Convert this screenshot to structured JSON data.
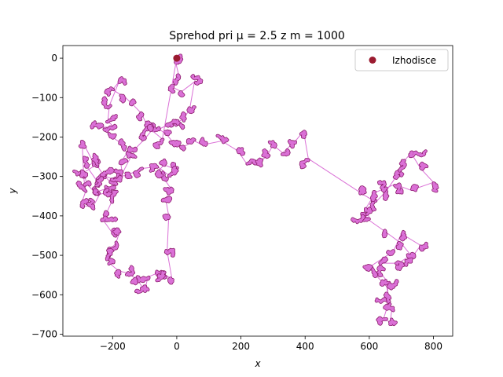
{
  "chart_data": {
    "type": "line",
    "title": "Sprehod pri μ = 2.5 z m = 1000",
    "xlabel": "x",
    "ylabel": "y",
    "xlim": [
      -355,
      860
    ],
    "ylim": [
      -705,
      32
    ],
    "xticks": [
      -200,
      0,
      200,
      400,
      600,
      800
    ],
    "xtick_labels": [
      "−200",
      "0",
      "200",
      "400",
      "600",
      "800"
    ],
    "yticks": [
      0,
      -100,
      -200,
      -300,
      -400,
      -500,
      -600,
      -700
    ],
    "ytick_labels": [
      "0",
      "−100",
      "−200",
      "−300",
      "−400",
      "−500",
      "−600",
      "−700"
    ],
    "grid": false,
    "legend": {
      "placement": "top-right",
      "entries": [
        "Izhodisce"
      ]
    },
    "colors": {
      "path": "#da70d6",
      "path_edge": "#8b1a6b",
      "origin": "#9b1b30"
    },
    "origin": {
      "label": "Izhodisce",
      "x": 0,
      "y": 0
    },
    "walk_jump_points": [
      [
        0,
        0
      ],
      [
        -5,
        -5
      ],
      [
        5,
        -40
      ],
      [
        -10,
        -75
      ],
      [
        15,
        -85
      ],
      [
        55,
        -60
      ],
      [
        40,
        -130
      ],
      [
        20,
        -155
      ],
      [
        -5,
        -165
      ],
      [
        -30,
        -170
      ],
      [
        -55,
        -180
      ],
      [
        -30,
        -195
      ],
      [
        -10,
        -215
      ],
      [
        20,
        -225
      ],
      [
        55,
        -210
      ],
      [
        80,
        -220
      ],
      [
        140,
        -210
      ],
      [
        190,
        -235
      ],
      [
        220,
        -270
      ],
      [
        250,
        -265
      ],
      [
        280,
        -250
      ],
      [
        300,
        -220
      ],
      [
        330,
        -240
      ],
      [
        370,
        -210
      ],
      [
        395,
        -185
      ],
      [
        410,
        -255
      ],
      [
        580,
        -345
      ],
      [
        620,
        -365
      ],
      [
        650,
        -340
      ],
      [
        680,
        -305
      ],
      [
        700,
        -270
      ],
      [
        730,
        -240
      ],
      [
        760,
        -280
      ],
      [
        800,
        -315
      ],
      [
        730,
        -335
      ],
      [
        680,
        -320
      ],
      [
        650,
        -330
      ],
      [
        620,
        -340
      ],
      [
        590,
        -380
      ],
      [
        600,
        -405
      ],
      [
        580,
        -400
      ],
      [
        650,
        -440
      ],
      [
        700,
        -470
      ],
      [
        730,
        -500
      ],
      [
        690,
        -520
      ],
      [
        640,
        -520
      ],
      [
        625,
        -535
      ],
      [
        660,
        -570
      ],
      [
        655,
        -610
      ],
      [
        670,
        -640
      ],
      [
        665,
        -670
      ],
      [
        645,
        -660
      ],
      [
        660,
        -620
      ],
      [
        655,
        -580
      ],
      [
        620,
        -550
      ],
      [
        600,
        -530
      ],
      [
        675,
        -490
      ],
      [
        700,
        -445
      ],
      [
        760,
        -475
      ],
      [
        720,
        -520
      ]
    ],
    "walk_left_points": [
      [
        0,
        0
      ],
      [
        -45,
        -205
      ],
      [
        -90,
        -175
      ],
      [
        -110,
        -140
      ],
      [
        -140,
        -115
      ],
      [
        -160,
        -100
      ],
      [
        -200,
        -80
      ],
      [
        -180,
        -60
      ],
      [
        -210,
        -120
      ],
      [
        -215,
        -160
      ],
      [
        -195,
        -175
      ],
      [
        -230,
        -175
      ],
      [
        -210,
        -195
      ],
      [
        -175,
        -215
      ],
      [
        -155,
        -240
      ],
      [
        -175,
        -265
      ],
      [
        -170,
        -290
      ],
      [
        -190,
        -310
      ],
      [
        -220,
        -300
      ],
      [
        -250,
        -310
      ],
      [
        -280,
        -275
      ],
      [
        -260,
        -265
      ],
      [
        -295,
        -210
      ],
      [
        -290,
        -300
      ],
      [
        -285,
        -340
      ],
      [
        -300,
        -375
      ],
      [
        -260,
        -375
      ],
      [
        -240,
        -345
      ],
      [
        -210,
        -340
      ],
      [
        -200,
        -320
      ],
      [
        -230,
        -295
      ],
      [
        -250,
        -270
      ],
      [
        -290,
        -290
      ],
      [
        -280,
        -320
      ],
      [
        -255,
        -340
      ],
      [
        -215,
        -330
      ],
      [
        -190,
        -340
      ],
      [
        -220,
        -395
      ],
      [
        -230,
        -410
      ],
      [
        -195,
        -450
      ],
      [
        -180,
        -445
      ],
      [
        -190,
        -470
      ],
      [
        -215,
        -490
      ],
      [
        -210,
        -520
      ],
      [
        -180,
        -540
      ],
      [
        -150,
        -545
      ],
      [
        -120,
        -565
      ],
      [
        -100,
        -590
      ],
      [
        -90,
        -555
      ],
      [
        -60,
        -545
      ],
      [
        -40,
        -555
      ],
      [
        -45,
        -545
      ],
      [
        -15,
        -560
      ],
      [
        -30,
        -490
      ],
      [
        -25,
        -400
      ],
      [
        -35,
        -355
      ],
      [
        -15,
        -335
      ],
      [
        -40,
        -305
      ],
      [
        -60,
        -290
      ],
      [
        -40,
        -270
      ],
      [
        -10,
        -280
      ],
      [
        -20,
        -300
      ],
      [
        -60,
        -275
      ],
      [
        -110,
        -280
      ],
      [
        -150,
        -295
      ],
      [
        -175,
        -300
      ],
      [
        -130,
        -230
      ],
      [
        -100,
        -205
      ],
      [
        -80,
        -185
      ]
    ]
  }
}
